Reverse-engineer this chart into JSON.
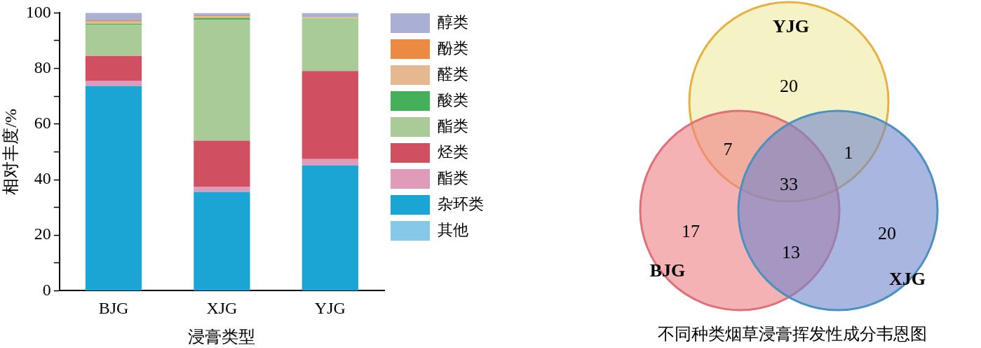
{
  "chart_data": [
    {
      "type": "bar",
      "stacked": true,
      "xlabel": "浸膏类型",
      "ylabel": "相对丰度/%",
      "categories": [
        "BJG",
        "XJG",
        "YJG"
      ],
      "ylim": [
        0,
        100
      ],
      "yticks": [
        0,
        {
          "value": 10,
          "label": null
        },
        20,
        {
          "value": 30,
          "label": null
        },
        40,
        {
          "value": 50,
          "label": null
        },
        60,
        {
          "value": 70,
          "label": null
        },
        80,
        {
          "value": 90,
          "label": null
        },
        100
      ],
      "grid": false,
      "legend": "right",
      "series": [
        {
          "name": "其他",
          "color": "#85c8e8",
          "values": [
            0,
            0,
            0
          ]
        },
        {
          "name": "杂环类",
          "color": "#1ba5d4",
          "values": [
            73.7,
            35.6,
            45.1
          ]
        },
        {
          "name": "酯类",
          "color": "#e09aba",
          "values": [
            1.9,
            1.9,
            2.3
          ]
        },
        {
          "name": "烃类",
          "color": "#d04f60",
          "values": [
            8.9,
            16.5,
            31.7
          ]
        },
        {
          "name": "酯类",
          "color": "#a8cb98",
          "values": [
            11.2,
            43.5,
            19.1
          ]
        },
        {
          "name": "酸类",
          "color": "#44b05a",
          "values": [
            0.4,
            0.7,
            0
          ]
        },
        {
          "name": "醛类",
          "color": "#e6b88f",
          "values": [
            0.8,
            0.5,
            0.4
          ]
        },
        {
          "name": "酚类",
          "color": "#ec8a44",
          "values": [
            0.4,
            0.4,
            0
          ]
        },
        {
          "name": "醇类",
          "color": "#a9b0d4",
          "values": [
            2.8,
            0.9,
            1.4
          ]
        }
      ]
    },
    {
      "type": "other",
      "title": "不同种类烟草浸膏挥发性成分韦恩图",
      "annotations": [
        "YJG",
        "BJG",
        "XJG",
        "20",
        "7",
        "1",
        "33",
        "17",
        "13",
        "20"
      ]
    }
  ]
}
